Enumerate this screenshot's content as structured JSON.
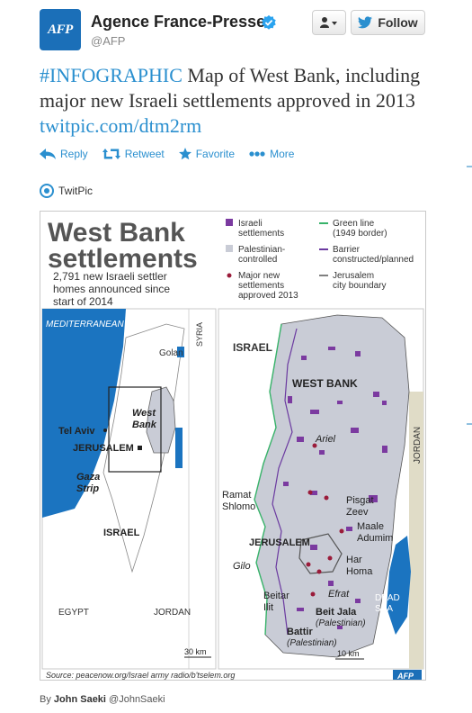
{
  "account": {
    "name": "Agence France-Presse",
    "handle": "@AFP",
    "logo_text": "AFP",
    "verified_icon": "verified-badge-icon"
  },
  "buttons": {
    "follow_label": "Follow",
    "user_menu_icon": "user-dropdown-icon"
  },
  "tweet": {
    "hashtag": "#INFOGRAPHIC",
    "text": " Map of West Bank, including major new Israeli settlements approved in 2013 ",
    "link": "twitpic.com/dtm2rm"
  },
  "actions": [
    {
      "label": "Reply",
      "icon": "reply-icon"
    },
    {
      "label": "Retweet",
      "icon": "retweet-icon"
    },
    {
      "label": "Favorite",
      "icon": "star-icon"
    },
    {
      "label": "More",
      "icon": "more-dots-icon"
    }
  ],
  "media": {
    "provider": "TwitPic",
    "provider_icon": "twitpic-icon"
  },
  "infographic": {
    "title_line1": "West Bank",
    "title_line2": "settlements",
    "subtitle_line1": "2,791 new Israeli settler",
    "subtitle_line2": "homes announced since",
    "subtitle_line3": "start of 2014",
    "legend": {
      "settlements_1": "Israeli",
      "settlements_2": "settlements",
      "palestinian_1": "Palestinian-",
      "palestinian_2": "controlled",
      "major_1": "Major new",
      "major_2": "settlements",
      "major_3": "approved 2013",
      "green_1": "Green line",
      "green_2": "(1949 border)",
      "barrier_1": "Barrier",
      "barrier_2": "constructed/planned",
      "jer_1": "Jerusalem",
      "jer_2": "city boundary"
    },
    "left_map": {
      "mediterranean": "MEDITERRANEAN",
      "syria": "SYRIA",
      "golan": "Golan",
      "westbank_1": "West",
      "westbank_2": "Bank",
      "telaviv": "Tel Aviv",
      "jerusalem": "JERUSALEM",
      "gaza_1": "Gaza",
      "gaza_2": "Strip",
      "israel": "ISRAEL",
      "egypt": "EGYPT",
      "jordan": "JORDAN",
      "scale": "30 km"
    },
    "right_map": {
      "israel": "ISRAEL",
      "westbank": "WEST BANK",
      "ariel": "Ariel",
      "ramat_1": "Ramat",
      "ramat_2": "Shlomo",
      "pisgat_1": "Pisgat",
      "pisgat_2": "Zeev",
      "maale_1": "Maale",
      "maale_2": "Adumim",
      "jerusalem": "JERUSALEM",
      "har_1": "Har",
      "har_2": "Homa",
      "gilo": "Gilo",
      "efrat": "Efrat",
      "beitar_1": "Beitar",
      "beitar_2": "Ilit",
      "beitjala_1": "Beit Jala",
      "beitjala_2": "(Palestinian)",
      "battir_1": "Battir",
      "battir_2": "(Palestinian)",
      "deadsea_1": "DEAD",
      "deadsea_2": "SEA",
      "jordan": "JORDAN",
      "scale": "10 km"
    },
    "source": "Source: peacenow.org/Israel army radio/b'tselem.org",
    "credit": "AFP"
  },
  "byline": {
    "prefix": "By ",
    "author": "John Saeki",
    "handle": " @JohnSaeki"
  }
}
